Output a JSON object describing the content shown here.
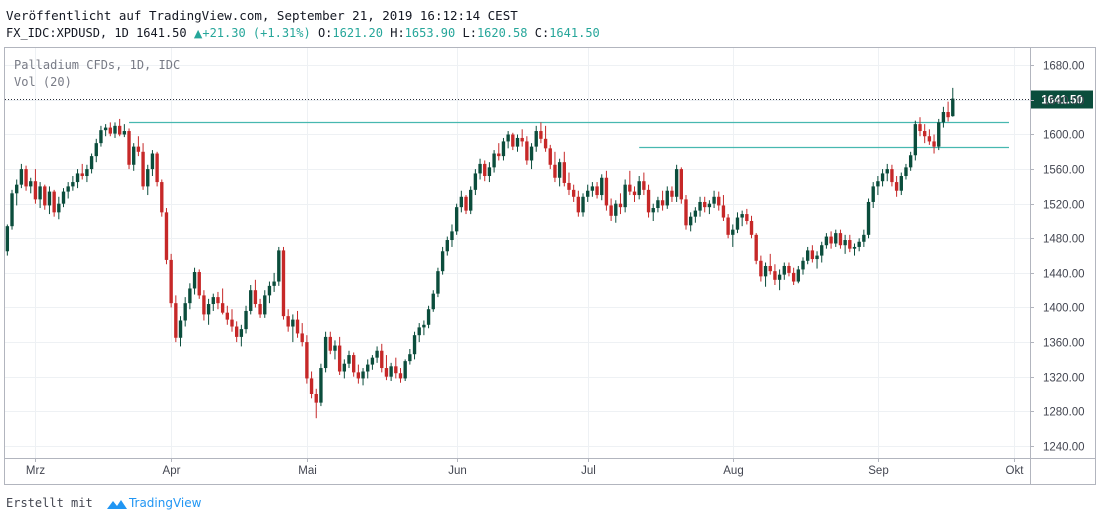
{
  "header": {
    "published": "Veröffentlicht auf TradingView.com, September 21, 2019 16:12:14 CEST",
    "symbol": "FX_IDC:XPDUSD, 1D",
    "price": "1641.50",
    "change": "+21.30 (+1.31%)",
    "open_label": "O:",
    "open": "1621.20",
    "high_label": "H:",
    "high": "1653.90",
    "low_label": "L:",
    "low": "1620.58",
    "close_label": "C:",
    "close": "1641.50"
  },
  "pane_legend": {
    "title": "Palladium CFDs, 1D, IDC",
    "volume": "Vol (20)"
  },
  "footer": {
    "created_with": "Erstellt mit",
    "brand": "TradingView"
  },
  "colors": {
    "up": "#0b4d3c",
    "down": "#c62828",
    "hline": "#47b8b0",
    "price_label_bg": "#0b4d3c",
    "grid": "#eef1f4"
  },
  "chart_data": {
    "type": "candlestick",
    "title": "Palladium CFDs, 1D, IDC",
    "y_axis": {
      "ticks": [
        1240,
        1280,
        1320,
        1360,
        1400,
        1440,
        1480,
        1520,
        1560,
        1600,
        1640,
        1680
      ],
      "tick_labels": [
        "1240.00",
        "1280.00",
        "1320.00",
        "1360.00",
        "1400.00",
        "1440.00",
        "1480.00",
        "1520.00",
        "1560.00",
        "1600.00",
        "1640.00",
        "1680.00"
      ],
      "range": [
        1226,
        1700
      ]
    },
    "x_axis": {
      "labels": [
        "Mrz",
        "Apr",
        "Mai",
        "Jun",
        "Jul",
        "Aug",
        "Sep",
        "Okt"
      ],
      "label_bar_index": [
        6,
        35,
        64,
        96,
        124,
        155,
        186,
        215
      ],
      "total_slots": 219
    },
    "last_price": 1641.5,
    "last_price_label": "1641.50",
    "horizontal_lines": [
      1615,
      1585
    ],
    "horizontal_line_start_bar": [
      26,
      135
    ],
    "candles": [
      [
        1465,
        1496,
        1460,
        1494
      ],
      [
        1494,
        1536,
        1490,
        1532
      ],
      [
        1532,
        1548,
        1518,
        1542
      ],
      [
        1542,
        1566,
        1538,
        1560
      ],
      [
        1560,
        1564,
        1535,
        1540
      ],
      [
        1540,
        1550,
        1532,
        1546
      ],
      [
        1546,
        1560,
        1520,
        1525
      ],
      [
        1525,
        1545,
        1515,
        1540
      ],
      [
        1540,
        1542,
        1513,
        1518
      ],
      [
        1518,
        1540,
        1508,
        1534
      ],
      [
        1534,
        1536,
        1505,
        1510
      ],
      [
        1510,
        1528,
        1502,
        1520
      ],
      [
        1520,
        1538,
        1516,
        1534
      ],
      [
        1534,
        1545,
        1526,
        1540
      ],
      [
        1540,
        1552,
        1535,
        1545
      ],
      [
        1545,
        1560,
        1538,
        1555
      ],
      [
        1555,
        1566,
        1548,
        1552
      ],
      [
        1552,
        1565,
        1545,
        1560
      ],
      [
        1560,
        1578,
        1555,
        1575
      ],
      [
        1575,
        1595,
        1568,
        1590
      ],
      [
        1590,
        1610,
        1586,
        1605
      ],
      [
        1605,
        1612,
        1598,
        1608
      ],
      [
        1608,
        1614,
        1598,
        1601
      ],
      [
        1601,
        1614,
        1596,
        1610
      ],
      [
        1610,
        1618,
        1598,
        1600
      ],
      [
        1600,
        1612,
        1597,
        1604
      ],
      [
        1604,
        1607,
        1560,
        1565
      ],
      [
        1565,
        1590,
        1558,
        1586
      ],
      [
        1586,
        1598,
        1575,
        1580
      ],
      [
        1580,
        1590,
        1536,
        1540
      ],
      [
        1540,
        1565,
        1530,
        1560
      ],
      [
        1560,
        1582,
        1552,
        1578
      ],
      [
        1578,
        1580,
        1540,
        1545
      ],
      [
        1545,
        1548,
        1505,
        1510
      ],
      [
        1510,
        1515,
        1450,
        1455
      ],
      [
        1455,
        1462,
        1400,
        1405
      ],
      [
        1405,
        1414,
        1360,
        1365
      ],
      [
        1365,
        1390,
        1355,
        1385
      ],
      [
        1385,
        1412,
        1378,
        1405
      ],
      [
        1405,
        1428,
        1398,
        1422
      ],
      [
        1422,
        1446,
        1415,
        1441
      ],
      [
        1441,
        1444,
        1410,
        1414
      ],
      [
        1414,
        1420,
        1385,
        1392
      ],
      [
        1392,
        1410,
        1380,
        1404
      ],
      [
        1404,
        1416,
        1396,
        1412
      ],
      [
        1412,
        1418,
        1398,
        1405
      ],
      [
        1405,
        1422,
        1392,
        1394
      ],
      [
        1394,
        1402,
        1380,
        1386
      ],
      [
        1386,
        1398,
        1372,
        1378
      ],
      [
        1378,
        1384,
        1360,
        1366
      ],
      [
        1366,
        1380,
        1355,
        1375
      ],
      [
        1375,
        1402,
        1370,
        1396
      ],
      [
        1396,
        1426,
        1392,
        1420
      ],
      [
        1420,
        1432,
        1400,
        1404
      ],
      [
        1404,
        1410,
        1388,
        1392
      ],
      [
        1392,
        1420,
        1388,
        1414
      ],
      [
        1414,
        1430,
        1405,
        1425
      ],
      [
        1425,
        1440,
        1418,
        1430
      ],
      [
        1430,
        1470,
        1425,
        1466
      ],
      [
        1466,
        1470,
        1386,
        1390
      ],
      [
        1390,
        1398,
        1372,
        1378
      ],
      [
        1378,
        1392,
        1360,
        1386
      ],
      [
        1386,
        1396,
        1365,
        1370
      ],
      [
        1370,
        1382,
        1355,
        1360
      ],
      [
        1360,
        1368,
        1312,
        1318
      ],
      [
        1318,
        1326,
        1295,
        1300
      ],
      [
        1300,
        1306,
        1272,
        1290
      ],
      [
        1290,
        1335,
        1286,
        1330
      ],
      [
        1330,
        1372,
        1325,
        1366
      ],
      [
        1366,
        1372,
        1346,
        1350
      ],
      [
        1350,
        1362,
        1340,
        1356
      ],
      [
        1356,
        1366,
        1322,
        1326
      ],
      [
        1326,
        1340,
        1318,
        1335
      ],
      [
        1335,
        1350,
        1330,
        1345
      ],
      [
        1345,
        1348,
        1320,
        1325
      ],
      [
        1325,
        1334,
        1312,
        1318
      ],
      [
        1318,
        1330,
        1310,
        1326
      ],
      [
        1326,
        1340,
        1318,
        1334
      ],
      [
        1334,
        1345,
        1328,
        1342
      ],
      [
        1342,
        1355,
        1336,
        1350
      ],
      [
        1350,
        1358,
        1325,
        1330
      ],
      [
        1330,
        1345,
        1316,
        1320
      ],
      [
        1320,
        1336,
        1315,
        1332
      ],
      [
        1332,
        1342,
        1318,
        1324
      ],
      [
        1324,
        1330,
        1313,
        1318
      ],
      [
        1318,
        1340,
        1315,
        1338
      ],
      [
        1338,
        1352,
        1334,
        1346
      ],
      [
        1346,
        1372,
        1340,
        1368
      ],
      [
        1368,
        1382,
        1360,
        1377
      ],
      [
        1377,
        1385,
        1368,
        1380
      ],
      [
        1380,
        1402,
        1376,
        1398
      ],
      [
        1398,
        1420,
        1395,
        1416
      ],
      [
        1416,
        1446,
        1412,
        1442
      ],
      [
        1442,
        1470,
        1438,
        1465
      ],
      [
        1465,
        1482,
        1460,
        1478
      ],
      [
        1478,
        1496,
        1470,
        1488
      ],
      [
        1488,
        1520,
        1484,
        1516
      ],
      [
        1516,
        1535,
        1510,
        1528
      ],
      [
        1528,
        1530,
        1508,
        1512
      ],
      [
        1512,
        1540,
        1508,
        1536
      ],
      [
        1536,
        1560,
        1530,
        1555
      ],
      [
        1555,
        1572,
        1548,
        1566
      ],
      [
        1566,
        1570,
        1546,
        1552
      ],
      [
        1552,
        1568,
        1545,
        1562
      ],
      [
        1562,
        1582,
        1556,
        1578
      ],
      [
        1578,
        1590,
        1570,
        1575
      ],
      [
        1575,
        1596,
        1570,
        1592
      ],
      [
        1592,
        1604,
        1584,
        1600
      ],
      [
        1600,
        1602,
        1582,
        1586
      ],
      [
        1586,
        1600,
        1580,
        1596
      ],
      [
        1596,
        1606,
        1586,
        1592
      ],
      [
        1592,
        1598,
        1565,
        1570
      ],
      [
        1570,
        1590,
        1560,
        1586
      ],
      [
        1586,
        1610,
        1580,
        1604
      ],
      [
        1604,
        1614,
        1590,
        1595
      ],
      [
        1595,
        1610,
        1580,
        1584
      ],
      [
        1584,
        1588,
        1560,
        1565
      ],
      [
        1565,
        1580,
        1545,
        1550
      ],
      [
        1550,
        1572,
        1540,
        1568
      ],
      [
        1568,
        1580,
        1540,
        1544
      ],
      [
        1544,
        1556,
        1530,
        1536
      ],
      [
        1536,
        1542,
        1522,
        1528
      ],
      [
        1528,
        1535,
        1505,
        1510
      ],
      [
        1510,
        1532,
        1505,
        1528
      ],
      [
        1528,
        1542,
        1522,
        1535
      ],
      [
        1535,
        1545,
        1528,
        1540
      ],
      [
        1540,
        1545,
        1526,
        1530
      ],
      [
        1530,
        1554,
        1524,
        1550
      ],
      [
        1550,
        1558,
        1512,
        1518
      ],
      [
        1518,
        1526,
        1500,
        1506
      ],
      [
        1506,
        1524,
        1498,
        1520
      ],
      [
        1520,
        1532,
        1508,
        1516
      ],
      [
        1516,
        1548,
        1510,
        1542
      ],
      [
        1542,
        1558,
        1530,
        1534
      ],
      [
        1534,
        1540,
        1522,
        1530
      ],
      [
        1530,
        1552,
        1525,
        1546
      ],
      [
        1546,
        1556,
        1530,
        1536
      ],
      [
        1536,
        1542,
        1504,
        1510
      ],
      [
        1510,
        1520,
        1500,
        1515
      ],
      [
        1515,
        1528,
        1510,
        1524
      ],
      [
        1524,
        1535,
        1512,
        1518
      ],
      [
        1518,
        1540,
        1514,
        1535
      ],
      [
        1535,
        1540,
        1522,
        1528
      ],
      [
        1528,
        1565,
        1522,
        1560
      ],
      [
        1560,
        1562,
        1520,
        1525
      ],
      [
        1525,
        1530,
        1490,
        1495
      ],
      [
        1495,
        1510,
        1488,
        1505
      ],
      [
        1505,
        1516,
        1498,
        1512
      ],
      [
        1512,
        1528,
        1505,
        1522
      ],
      [
        1522,
        1528,
        1510,
        1516
      ],
      [
        1516,
        1524,
        1508,
        1520
      ],
      [
        1520,
        1535,
        1515,
        1528
      ],
      [
        1528,
        1534,
        1512,
        1518
      ],
      [
        1518,
        1530,
        1500,
        1504
      ],
      [
        1504,
        1508,
        1480,
        1484
      ],
      [
        1484,
        1496,
        1470,
        1490
      ],
      [
        1490,
        1510,
        1486,
        1504
      ],
      [
        1504,
        1512,
        1494,
        1508
      ],
      [
        1508,
        1514,
        1496,
        1500
      ],
      [
        1500,
        1506,
        1480,
        1484
      ],
      [
        1484,
        1486,
        1450,
        1454
      ],
      [
        1454,
        1460,
        1430,
        1436
      ],
      [
        1436,
        1452,
        1424,
        1448
      ],
      [
        1448,
        1462,
        1438,
        1442
      ],
      [
        1442,
        1450,
        1426,
        1432
      ],
      [
        1432,
        1444,
        1420,
        1438
      ],
      [
        1438,
        1452,
        1432,
        1448
      ],
      [
        1448,
        1452,
        1436,
        1440
      ],
      [
        1440,
        1446,
        1426,
        1430
      ],
      [
        1430,
        1448,
        1428,
        1444
      ],
      [
        1444,
        1458,
        1438,
        1454
      ],
      [
        1454,
        1470,
        1450,
        1466
      ],
      [
        1466,
        1472,
        1452,
        1456
      ],
      [
        1456,
        1465,
        1445,
        1460
      ],
      [
        1460,
        1476,
        1452,
        1472
      ],
      [
        1472,
        1486,
        1468,
        1482
      ],
      [
        1482,
        1488,
        1468,
        1474
      ],
      [
        1474,
        1490,
        1470,
        1486
      ],
      [
        1486,
        1490,
        1468,
        1472
      ],
      [
        1472,
        1484,
        1462,
        1478
      ],
      [
        1478,
        1484,
        1464,
        1468
      ],
      [
        1468,
        1474,
        1460,
        1470
      ],
      [
        1470,
        1480,
        1465,
        1476
      ],
      [
        1476,
        1490,
        1470,
        1484
      ],
      [
        1484,
        1526,
        1480,
        1522
      ],
      [
        1522,
        1545,
        1515,
        1540
      ],
      [
        1540,
        1552,
        1530,
        1546
      ],
      [
        1546,
        1560,
        1540,
        1555
      ],
      [
        1555,
        1566,
        1546,
        1560
      ],
      [
        1560,
        1565,
        1540,
        1545
      ],
      [
        1545,
        1552,
        1528,
        1535
      ],
      [
        1535,
        1556,
        1530,
        1552
      ],
      [
        1552,
        1566,
        1548,
        1562
      ],
      [
        1562,
        1580,
        1558,
        1576
      ],
      [
        1576,
        1616,
        1570,
        1612
      ],
      [
        1612,
        1620,
        1598,
        1604
      ],
      [
        1604,
        1612,
        1590,
        1598
      ],
      [
        1598,
        1606,
        1588,
        1592
      ],
      [
        1592,
        1600,
        1578,
        1586
      ],
      [
        1586,
        1618,
        1582,
        1614
      ],
      [
        1614,
        1632,
        1608,
        1626
      ],
      [
        1626,
        1638,
        1615,
        1620
      ],
      [
        1621.2,
        1653.9,
        1620.58,
        1641.5
      ]
    ]
  }
}
